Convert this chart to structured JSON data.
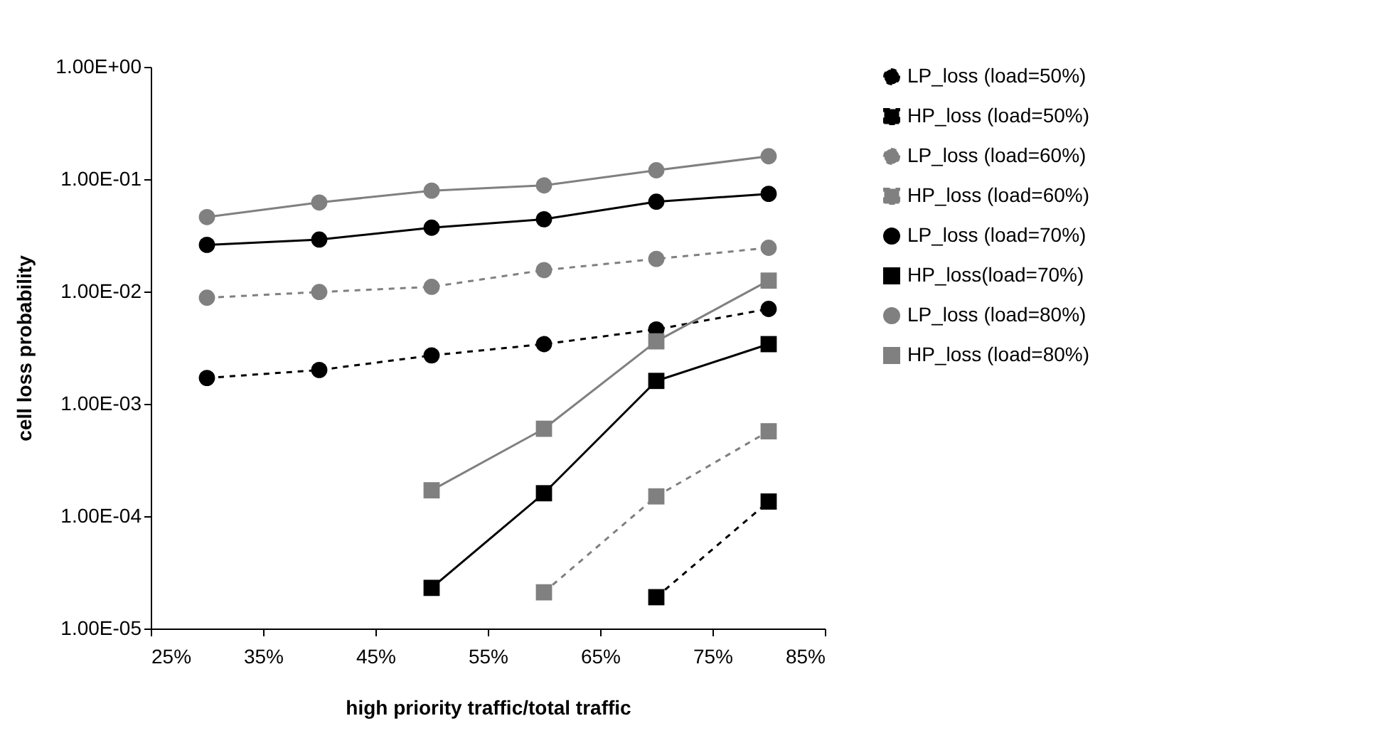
{
  "chart_data": {
    "type": "line",
    "xlabel": "high priority traffic/total traffic",
    "ylabel": "cell loss probability",
    "log": "y",
    "grid": false,
    "legend": "right",
    "x": [
      30,
      40,
      50,
      60,
      70,
      80
    ],
    "xlim": [
      25,
      85
    ],
    "xticks": [
      {
        "value": 25,
        "label": "25%"
      },
      {
        "value": 35,
        "label": "35%"
      },
      {
        "value": 45,
        "label": "45%"
      },
      {
        "value": 55,
        "label": "55%"
      },
      {
        "value": 65,
        "label": "65%"
      },
      {
        "value": 75,
        "label": "75%"
      },
      {
        "value": 85,
        "label": "85%"
      }
    ],
    "ylim": [
      1e-05,
      1
    ],
    "yticks": [
      {
        "value": 1e-05,
        "label": "1.00E-05"
      },
      {
        "value": 0.0001,
        "label": "1.00E-04"
      },
      {
        "value": 0.001,
        "label": "1.00E-03"
      },
      {
        "value": 0.01,
        "label": "1.00E-02"
      },
      {
        "value": 0.1,
        "label": "1.00E-01"
      },
      {
        "value": 1,
        "label": "1.00E+00"
      }
    ],
    "series": [
      {
        "name": "LP_loss (load=50%)",
        "color": "#000000",
        "marker": "circle",
        "line_style": "dashed",
        "values": [
          0.0017,
          0.002,
          0.0027,
          0.0034,
          0.0046,
          0.007
        ]
      },
      {
        "name": "HP_loss (load=50%)",
        "color": "#000000",
        "marker": "square",
        "line_style": "dashed",
        "values": [
          null,
          null,
          null,
          null,
          1.9e-05,
          0.000135
        ]
      },
      {
        "name": "LP_loss (load=60%)",
        "color": "#808080",
        "marker": "circle",
        "line_style": "dashed",
        "values": [
          0.0088,
          0.0099,
          0.011,
          0.0155,
          0.0195,
          0.0245
        ]
      },
      {
        "name": "HP_loss (load=60%)",
        "color": "#808080",
        "marker": "square",
        "line_style": "dashed",
        "values": [
          null,
          null,
          null,
          2.1e-05,
          0.00015,
          0.00057
        ]
      },
      {
        "name": "LP_loss (load=70%)",
        "color": "#000000",
        "marker": "circle",
        "line_style": "solid",
        "values": [
          0.026,
          0.029,
          0.037,
          0.044,
          0.063,
          0.074
        ]
      },
      {
        "name": "HP_loss(load=70%)",
        "color": "#000000",
        "marker": "square",
        "line_style": "solid",
        "values": [
          null,
          null,
          2.3e-05,
          0.00016,
          0.0016,
          0.0034
        ]
      },
      {
        "name": "LP_loss (load=80%)",
        "color": "#808080",
        "marker": "circle",
        "line_style": "solid",
        "values": [
          0.046,
          0.062,
          0.079,
          0.088,
          0.12,
          0.16
        ]
      },
      {
        "name": "HP_loss (load=80%)",
        "color": "#808080",
        "marker": "square",
        "line_style": "solid",
        "values": [
          null,
          null,
          0.00017,
          0.0006,
          0.0036,
          0.0125
        ]
      }
    ]
  }
}
